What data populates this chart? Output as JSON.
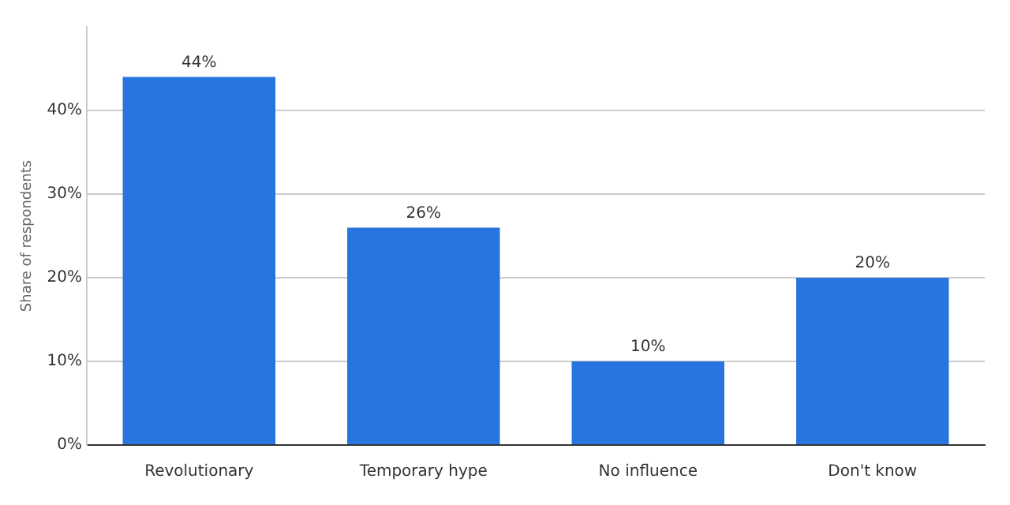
{
  "chart_data": {
    "type": "bar",
    "ylabel": "Share of respondents",
    "categories": [
      "Revolutionary",
      "Temporary hype",
      "No influence",
      "Don't know"
    ],
    "values": [
      44,
      26,
      10,
      20
    ],
    "value_labels": [
      "44%",
      "26%",
      "10%",
      "20%"
    ],
    "color": "#2875df",
    "ylim": [
      0,
      50
    ],
    "yticks": [
      {
        "value": 0,
        "label": "0%"
      },
      {
        "value": 10,
        "label": "10%"
      },
      {
        "value": 20,
        "label": "20%"
      },
      {
        "value": 30,
        "label": "30%"
      },
      {
        "value": 40,
        "label": "40%"
      }
    ],
    "grid": "y"
  }
}
